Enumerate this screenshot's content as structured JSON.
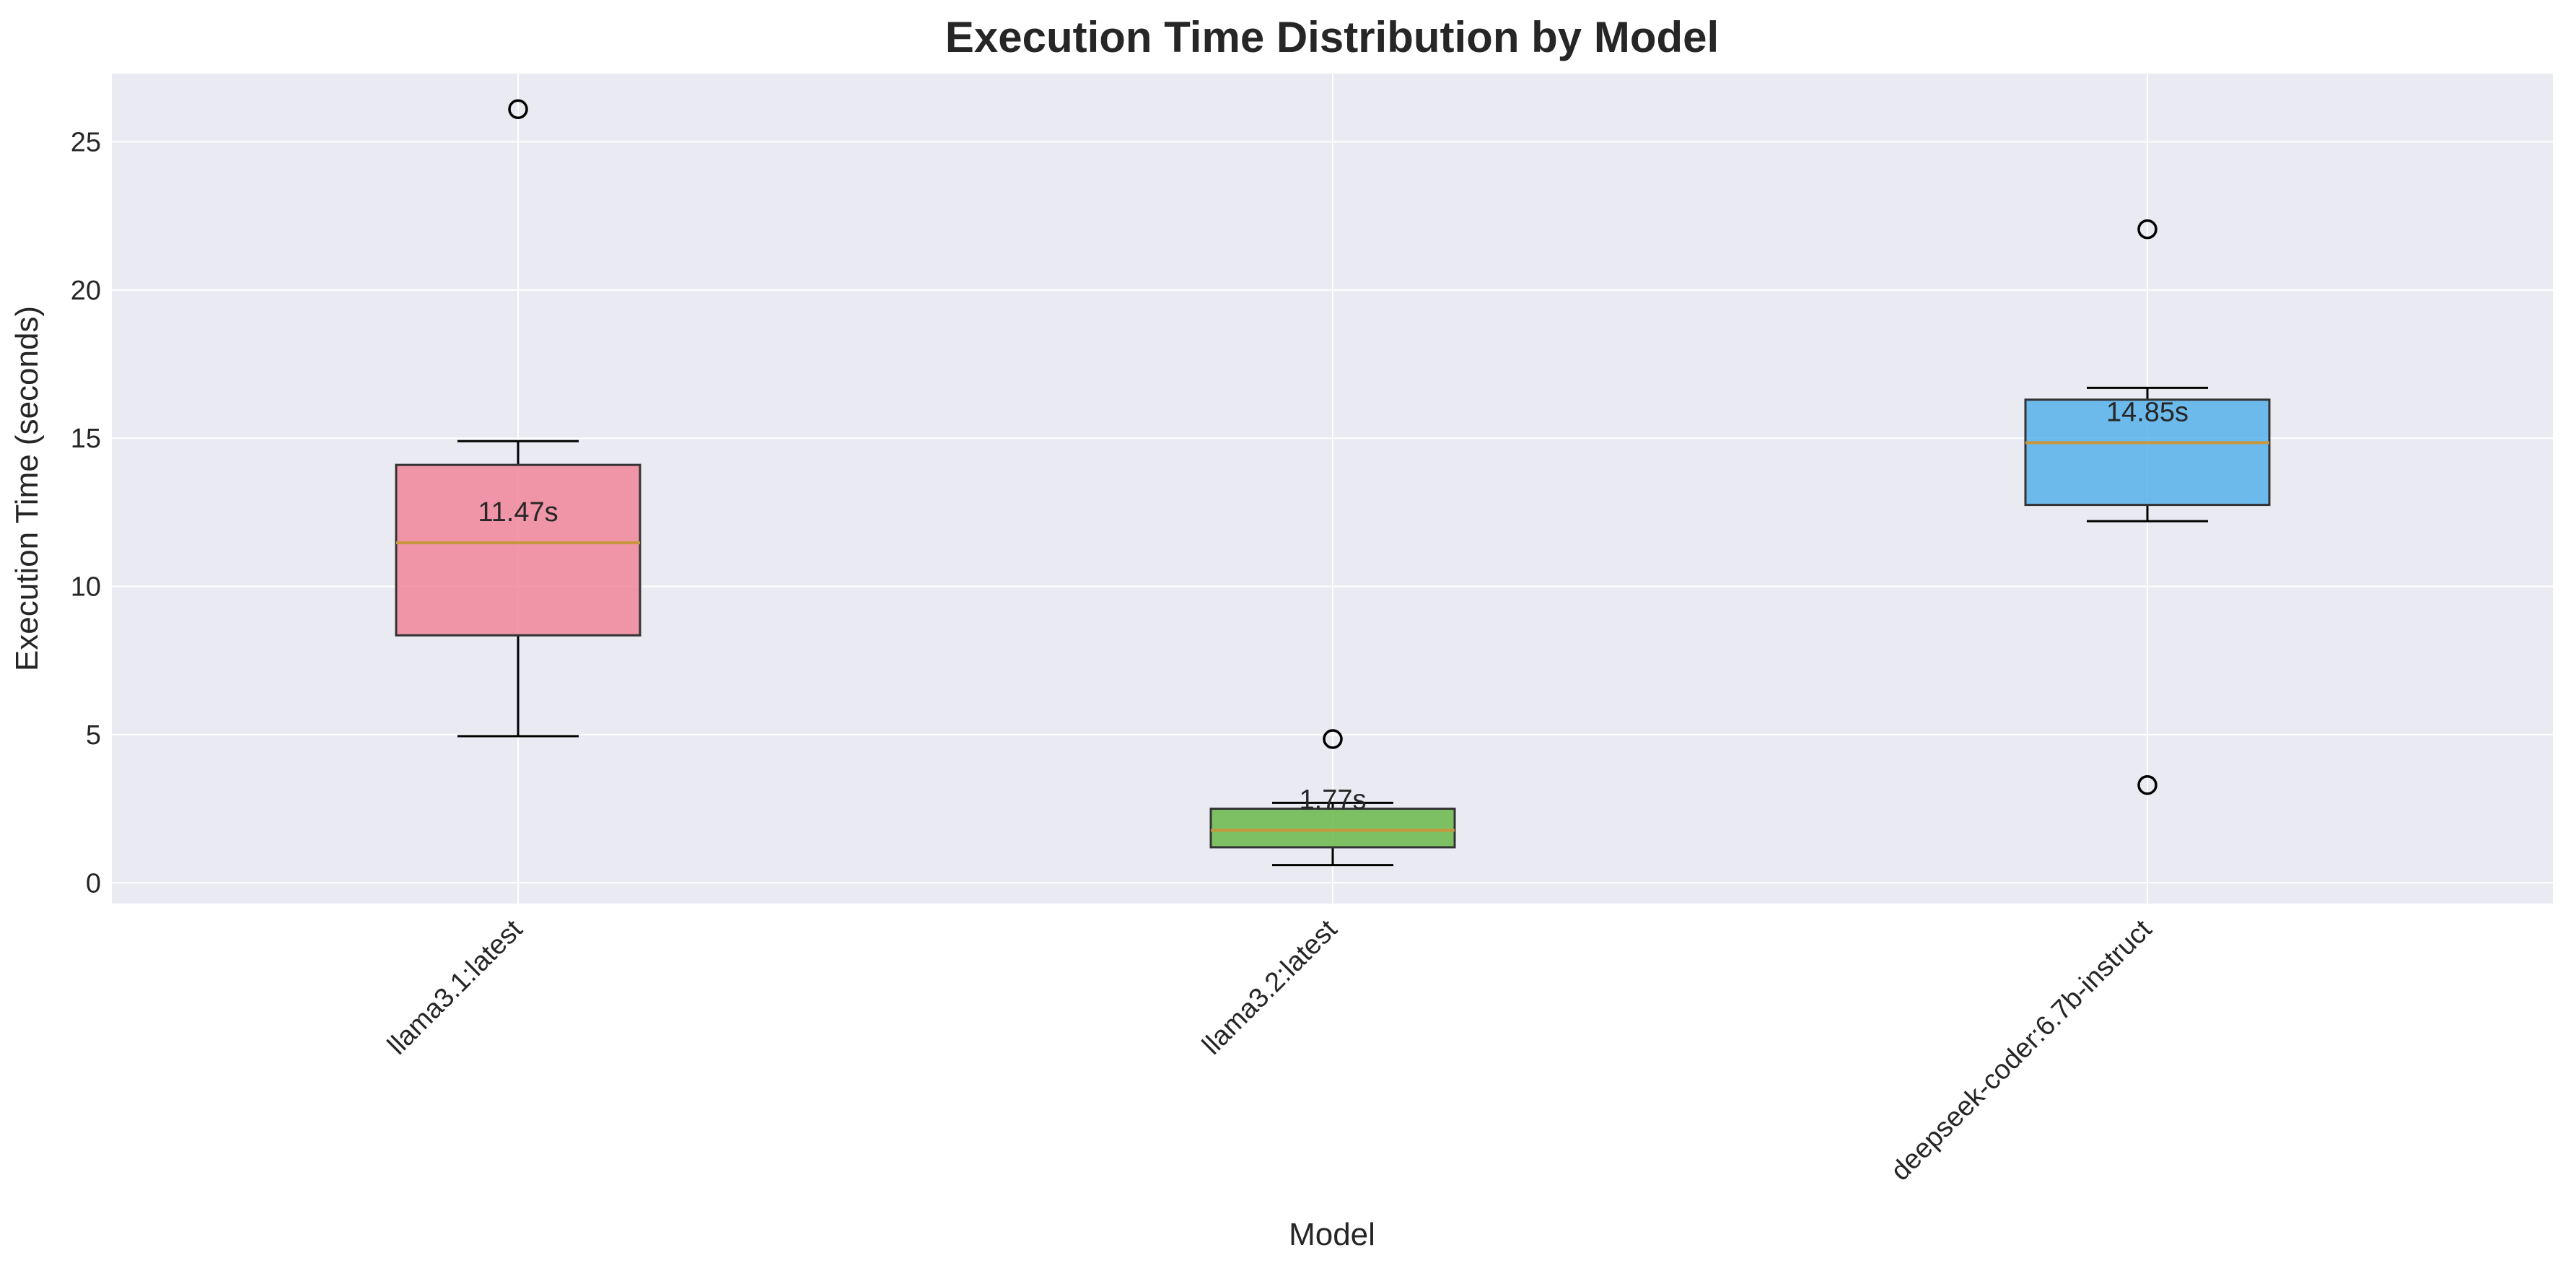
{
  "chart_data": {
    "type": "box",
    "title": "Execution Time Distribution by Model",
    "xlabel": "Model",
    "ylabel": "Execution Time (seconds)",
    "ylim": [
      -0.7,
      27.3
    ],
    "yticks": [
      0,
      5,
      10,
      15,
      20,
      25
    ],
    "grid": true,
    "categories": [
      "llama3.1:latest",
      "llama3.2:latest",
      "deepseek-coder:6.7b-instruct"
    ],
    "boxes": [
      {
        "name": "llama3.1:latest",
        "whisker_low": 4.95,
        "q1": 8.35,
        "median": 11.47,
        "q3": 14.1,
        "whisker_high": 14.9,
        "outliers": [
          26.1
        ],
        "median_label": "11.47s",
        "color": "#f0869a"
      },
      {
        "name": "llama3.2:latest",
        "whisker_low": 0.6,
        "q1": 1.2,
        "median": 1.77,
        "q3": 2.5,
        "whisker_high": 2.7,
        "outliers": [
          4.85
        ],
        "median_label": "1.77s",
        "color": "#6ab84a"
      },
      {
        "name": "deepseek-coder:6.7b-instruct",
        "whisker_low": 12.2,
        "q1": 12.75,
        "median": 14.85,
        "q3": 16.3,
        "whisker_high": 16.7,
        "outliers": [
          22.05,
          3.3
        ],
        "median_label": "14.85s",
        "color": "#56b0ea"
      }
    ],
    "colors": {
      "plot_background": "#eaeaf2",
      "grid": "#ffffff",
      "median_line": "#c8963c",
      "box_edge": "#333333"
    }
  }
}
